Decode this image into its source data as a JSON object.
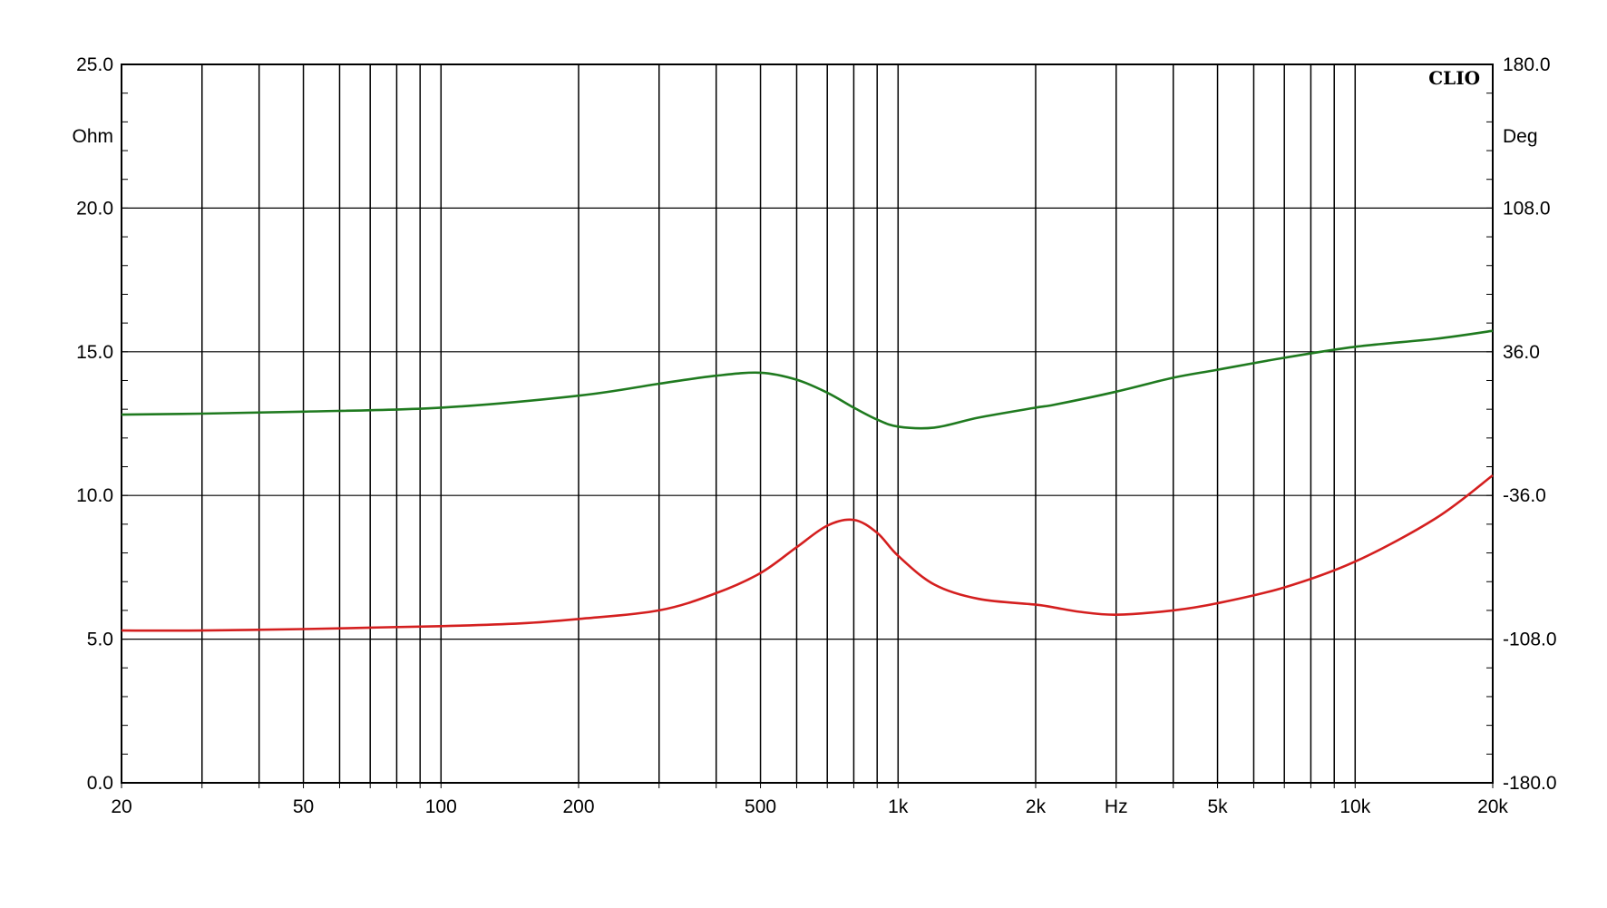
{
  "chart_data": {
    "type": "line",
    "brand": "CLIO",
    "x_scale": "log",
    "xlim": [
      20,
      20000
    ],
    "x_ticks": [
      {
        "value": 20,
        "label": "20"
      },
      {
        "value": 50,
        "label": "50"
      },
      {
        "value": 100,
        "label": "100"
      },
      {
        "value": 200,
        "label": "200"
      },
      {
        "value": 500,
        "label": "500"
      },
      {
        "value": 1000,
        "label": "1k"
      },
      {
        "value": 2000,
        "label": "2k"
      },
      {
        "value": 3000,
        "label": "Hz"
      },
      {
        "value": 5000,
        "label": "5k"
      },
      {
        "value": 10000,
        "label": "10k"
      },
      {
        "value": 20000,
        "label": "20k"
      }
    ],
    "y_left": {
      "unit": "Ohm",
      "lim": [
        0,
        25
      ],
      "ticks": [
        "0.0",
        "5.0",
        "10.0",
        "15.0",
        "20.0",
        "25.0"
      ]
    },
    "y_right": {
      "unit": "Deg",
      "lim": [
        -180,
        180
      ],
      "ticks": [
        "-180.0",
        "-108.0",
        "-36.0",
        "36.0",
        "108.0",
        "180.0"
      ]
    },
    "grid": true,
    "series": [
      {
        "color": "#1f7a1f",
        "axis": "right",
        "points": [
          [
            20,
            4.5
          ],
          [
            30,
            5.0
          ],
          [
            50,
            6.0
          ],
          [
            100,
            8.0
          ],
          [
            200,
            14.0
          ],
          [
            300,
            20.0
          ],
          [
            400,
            24.0
          ],
          [
            500,
            25.5
          ],
          [
            600,
            22.0
          ],
          [
            700,
            15.5
          ],
          [
            800,
            8.0
          ],
          [
            900,
            2.0
          ],
          [
            1000,
            -1.5
          ],
          [
            1200,
            -2.0
          ],
          [
            1500,
            3.0
          ],
          [
            2000,
            8.0
          ],
          [
            2200,
            9.5
          ],
          [
            3000,
            16.0
          ],
          [
            4000,
            23.0
          ],
          [
            5000,
            27.0
          ],
          [
            7000,
            33.0
          ],
          [
            10000,
            38.5
          ],
          [
            15000,
            42.5
          ],
          [
            20000,
            46.5
          ]
        ]
      },
      {
        "color": "#d41f1f",
        "axis": "left",
        "points": [
          [
            20,
            5.3
          ],
          [
            30,
            5.3
          ],
          [
            50,
            5.35
          ],
          [
            70,
            5.4
          ],
          [
            100,
            5.45
          ],
          [
            150,
            5.55
          ],
          [
            200,
            5.7
          ],
          [
            300,
            6.0
          ],
          [
            400,
            6.6
          ],
          [
            500,
            7.3
          ],
          [
            600,
            8.2
          ],
          [
            700,
            8.95
          ],
          [
            800,
            9.15
          ],
          [
            900,
            8.7
          ],
          [
            1000,
            7.9
          ],
          [
            1200,
            6.9
          ],
          [
            1500,
            6.4
          ],
          [
            2000,
            6.2
          ],
          [
            2200,
            6.1
          ],
          [
            2500,
            5.95
          ],
          [
            3000,
            5.85
          ],
          [
            4000,
            6.0
          ],
          [
            5000,
            6.25
          ],
          [
            7000,
            6.8
          ],
          [
            10000,
            7.7
          ],
          [
            15000,
            9.2
          ],
          [
            20000,
            10.7
          ]
        ]
      }
    ]
  }
}
